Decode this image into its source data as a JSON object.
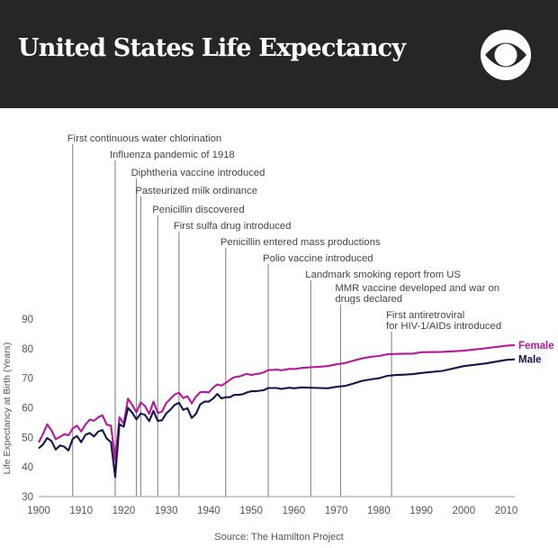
{
  "header": {
    "title": "United States Life Expectancy",
    "background": "#262626",
    "logo_icon": "cbs-eye-icon"
  },
  "source": "Source: The Hamilton Project",
  "chart_data": {
    "type": "line",
    "title": "United States Life Expectancy",
    "xlabel": "",
    "ylabel": "Life Expectancy at Birth (Years)",
    "xlim": [
      1900,
      2012
    ],
    "ylim": [
      30,
      90
    ],
    "xticks": [
      1900,
      1910,
      1920,
      1930,
      1940,
      1950,
      1960,
      1970,
      1980,
      1990,
      2000,
      2010
    ],
    "yticks": [
      30,
      40,
      50,
      60,
      70,
      80,
      90
    ],
    "grid": false,
    "series": [
      {
        "name": "Female",
        "color": "#b5179e",
        "x": [
          1900,
          1901,
          1902,
          1903,
          1904,
          1905,
          1906,
          1907,
          1908,
          1909,
          1910,
          1911,
          1912,
          1913,
          1914,
          1915,
          1916,
          1917,
          1918,
          1919,
          1920,
          1921,
          1922,
          1923,
          1924,
          1925,
          1926,
          1927,
          1928,
          1929,
          1930,
          1931,
          1932,
          1933,
          1934,
          1935,
          1936,
          1937,
          1938,
          1939,
          1940,
          1941,
          1942,
          1943,
          1944,
          1945,
          1946,
          1947,
          1948,
          1949,
          1950,
          1951,
          1952,
          1953,
          1954,
          1955,
          1956,
          1957,
          1958,
          1959,
          1960,
          1962,
          1964,
          1966,
          1968,
          1970,
          1972,
          1974,
          1976,
          1978,
          1980,
          1982,
          1984,
          1986,
          1988,
          1990,
          1995,
          2000,
          2005,
          2010,
          2012
        ],
        "values": [
          48.3,
          51.1,
          54.4,
          52.4,
          49.4,
          50.2,
          51.1,
          50.7,
          53.0,
          54.0,
          52.0,
          54.4,
          56.0,
          55.6,
          56.8,
          57.5,
          54.3,
          54.0,
          42.2,
          56.8,
          54.6,
          63.1,
          61.0,
          58.5,
          61.8,
          60.6,
          58.0,
          62.1,
          58.3,
          58.7,
          61.6,
          63.1,
          64.5,
          65.1,
          63.3,
          63.9,
          61.5,
          63.8,
          65.3,
          65.4,
          65.2,
          66.8,
          67.9,
          67.5,
          68.4,
          69.5,
          70.4,
          70.5,
          71.0,
          71.5,
          71.1,
          71.4,
          71.6,
          72.0,
          72.8,
          72.8,
          72.9,
          72.7,
          72.9,
          73.2,
          73.1,
          73.5,
          73.7,
          73.9,
          74.1,
          74.7,
          75.1,
          75.9,
          76.7,
          77.2,
          77.5,
          78.1,
          78.2,
          78.3,
          78.3,
          78.8,
          78.9,
          79.3,
          80.1,
          81.0,
          81.2
        ]
      },
      {
        "name": "Male",
        "color": "#14144f",
        "x": [
          1900,
          1901,
          1902,
          1903,
          1904,
          1905,
          1906,
          1907,
          1908,
          1909,
          1910,
          1911,
          1912,
          1913,
          1914,
          1915,
          1916,
          1917,
          1918,
          1919,
          1920,
          1921,
          1922,
          1923,
          1924,
          1925,
          1926,
          1927,
          1928,
          1929,
          1930,
          1931,
          1932,
          1933,
          1934,
          1935,
          1936,
          1937,
          1938,
          1939,
          1940,
          1941,
          1942,
          1943,
          1944,
          1945,
          1946,
          1947,
          1948,
          1949,
          1950,
          1951,
          1952,
          1953,
          1954,
          1955,
          1956,
          1957,
          1958,
          1959,
          1960,
          1962,
          1964,
          1966,
          1968,
          1970,
          1972,
          1974,
          1976,
          1978,
          1980,
          1982,
          1984,
          1986,
          1988,
          1990,
          1995,
          2000,
          2005,
          2010,
          2012
        ],
        "values": [
          46.3,
          47.6,
          49.8,
          48.8,
          45.9,
          47.3,
          46.9,
          45.6,
          49.5,
          50.5,
          48.4,
          50.9,
          51.5,
          50.3,
          52.0,
          52.5,
          49.6,
          48.4,
          36.6,
          54.5,
          53.6,
          60.0,
          58.4,
          56.1,
          58.1,
          57.6,
          55.5,
          59.0,
          55.6,
          55.8,
          58.1,
          59.4,
          61.0,
          61.7,
          59.3,
          59.9,
          56.6,
          58.0,
          61.2,
          62.1,
          62.1,
          63.1,
          64.7,
          63.2,
          63.6,
          63.6,
          64.4,
          64.4,
          64.6,
          65.2,
          65.6,
          65.6,
          65.8,
          66.0,
          66.7,
          66.7,
          66.7,
          66.4,
          66.6,
          66.8,
          66.6,
          66.9,
          66.8,
          66.7,
          66.6,
          67.1,
          67.4,
          68.2,
          69.1,
          69.6,
          70.0,
          70.8,
          71.1,
          71.2,
          71.4,
          71.8,
          72.5,
          74.1,
          75.0,
          76.2,
          76.4
        ]
      }
    ],
    "annotations": [
      {
        "year": 1908,
        "label": "First continuous water chlorination"
      },
      {
        "year": 1918,
        "label": "Influenza pandemic of 1918"
      },
      {
        "year": 1923,
        "label": "Diphtheria vaccine introduced"
      },
      {
        "year": 1924,
        "label": "Pasteurized milk ordinance"
      },
      {
        "year": 1928,
        "label": "Penicillin discovered"
      },
      {
        "year": 1933,
        "label": "First sulfa drug introduced"
      },
      {
        "year": 1944,
        "label": "Penicillin entered mass productions"
      },
      {
        "year": 1954,
        "label": "Polio vaccine introduced"
      },
      {
        "year": 1964,
        "label": "Landmark smoking report from US"
      },
      {
        "year": 1971,
        "label": [
          "MMR vaccine developed and war on",
          "drugs declared"
        ]
      },
      {
        "year": 1983,
        "label": [
          "First antiretroviral",
          "for HIV-1/AIDs introduced"
        ]
      }
    ]
  }
}
